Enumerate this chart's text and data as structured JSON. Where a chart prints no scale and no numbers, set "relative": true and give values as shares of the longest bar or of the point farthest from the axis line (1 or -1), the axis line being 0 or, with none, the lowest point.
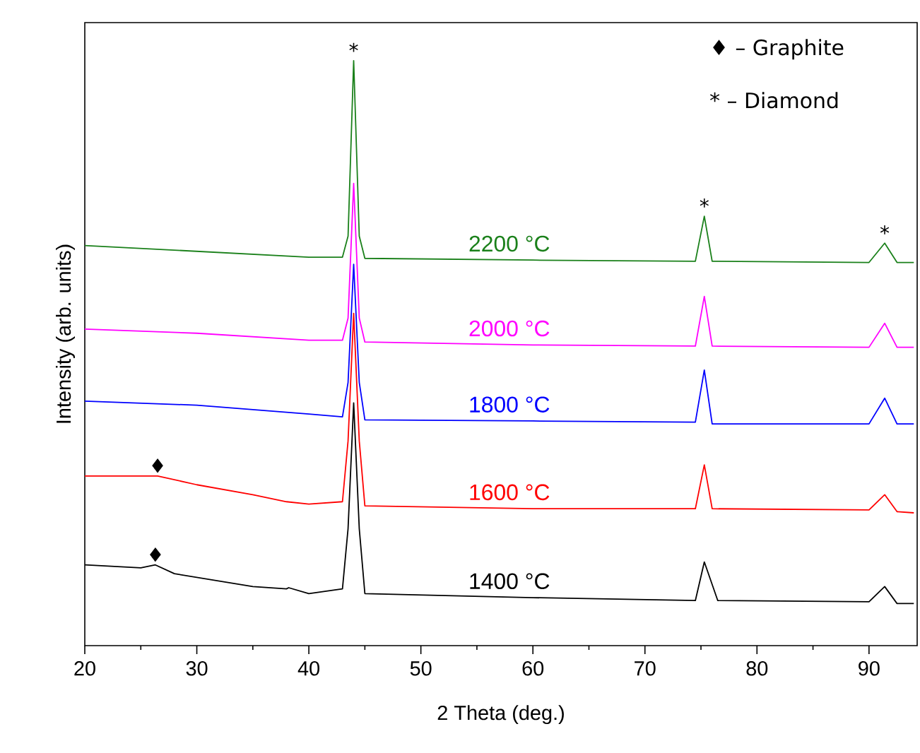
{
  "chart_data": {
    "type": "line",
    "relative": true,
    "xlabel": "2 Theta (deg.)",
    "ylabel": "Intensity (arb. units)",
    "xlim": [
      20,
      94.3
    ],
    "xticks": [
      20,
      {
        "value": 25,
        "label": null
      },
      30,
      {
        "value": 35,
        "label": null
      },
      40,
      {
        "value": 45,
        "label": null
      },
      50,
      {
        "value": 55,
        "label": null
      },
      60,
      {
        "value": 65,
        "label": null
      },
      70,
      {
        "value": 75,
        "label": null
      },
      80,
      {
        "value": 85,
        "label": null
      },
      90
    ],
    "series": [
      {
        "name": "1400 °C",
        "color": "#000000",
        "x": [
          20,
          25,
          26.3,
          28,
          35,
          38,
          38.2,
          40,
          43,
          43.5,
          44,
          44.5,
          45,
          60,
          74.5,
          75.3,
          76.5,
          90,
          91.4,
          92.5,
          94
        ],
        "values": [
          0.138,
          0.133,
          0.138,
          0.123,
          0.101,
          0.097,
          0.099,
          0.089,
          0.097,
          0.2,
          0.415,
          0.2,
          0.089,
          0.082,
          0.077,
          0.143,
          0.077,
          0.075,
          0.101,
          0.072,
          0.072
        ]
      },
      {
        "name": "1600 °C",
        "color": "#ff0000",
        "x": [
          20,
          26.5,
          30,
          35,
          38,
          40,
          43,
          43.5,
          44,
          44.5,
          45,
          60,
          74.5,
          75.3,
          76,
          90,
          91.4,
          92.5,
          94
        ],
        "values": [
          0.29,
          0.29,
          0.275,
          0.258,
          0.246,
          0.242,
          0.246,
          0.35,
          0.568,
          0.35,
          0.239,
          0.234,
          0.234,
          0.309,
          0.234,
          0.232,
          0.258,
          0.229,
          0.227
        ]
      },
      {
        "name": "1800 °C",
        "color": "#0000ff",
        "x": [
          20,
          30,
          40,
          43,
          43.5,
          44,
          44.5,
          45,
          60,
          74.5,
          75.3,
          76,
          90,
          91.4,
          92.5,
          94
        ],
        "values": [
          0.418,
          0.411,
          0.396,
          0.391,
          0.45,
          0.652,
          0.45,
          0.386,
          0.384,
          0.382,
          0.471,
          0.379,
          0.379,
          0.423,
          0.379,
          0.379
        ]
      },
      {
        "name": "2000 °C",
        "color": "#ff00ff",
        "x": [
          20,
          30,
          40,
          43,
          43.5,
          44,
          44.5,
          45,
          60,
          74.5,
          75.3,
          76,
          90,
          91.4,
          92.5,
          94
        ],
        "values": [
          0.541,
          0.534,
          0.522,
          0.522,
          0.56,
          0.79,
          0.56,
          0.519,
          0.514,
          0.512,
          0.597,
          0.512,
          0.51,
          0.551,
          0.51,
          0.51
        ]
      },
      {
        "name": "2200 °C",
        "color": "#1a801a",
        "x": [
          20,
          30,
          40,
          43,
          43.5,
          44,
          44.5,
          45,
          60,
          74.5,
          75.3,
          76,
          90,
          91.4,
          92.5,
          94
        ],
        "values": [
          0.684,
          0.674,
          0.664,
          0.664,
          0.7,
          1.0,
          0.7,
          0.662,
          0.659,
          0.657,
          0.734,
          0.657,
          0.655,
          0.688,
          0.655,
          0.655
        ]
      }
    ],
    "annotations": [
      "♦ – Graphite",
      "* – Diamond",
      {
        "text": "*",
        "x": 44,
        "y": 1.0
      },
      {
        "text": "*",
        "x": 75.3,
        "y": 0.734
      },
      {
        "text": "*",
        "x": 91.4,
        "y": 0.688
      },
      {
        "text": "♦",
        "x": 26.5,
        "y": 0.29
      },
      {
        "text": "♦",
        "x": 26.3,
        "y": 0.138
      }
    ]
  }
}
